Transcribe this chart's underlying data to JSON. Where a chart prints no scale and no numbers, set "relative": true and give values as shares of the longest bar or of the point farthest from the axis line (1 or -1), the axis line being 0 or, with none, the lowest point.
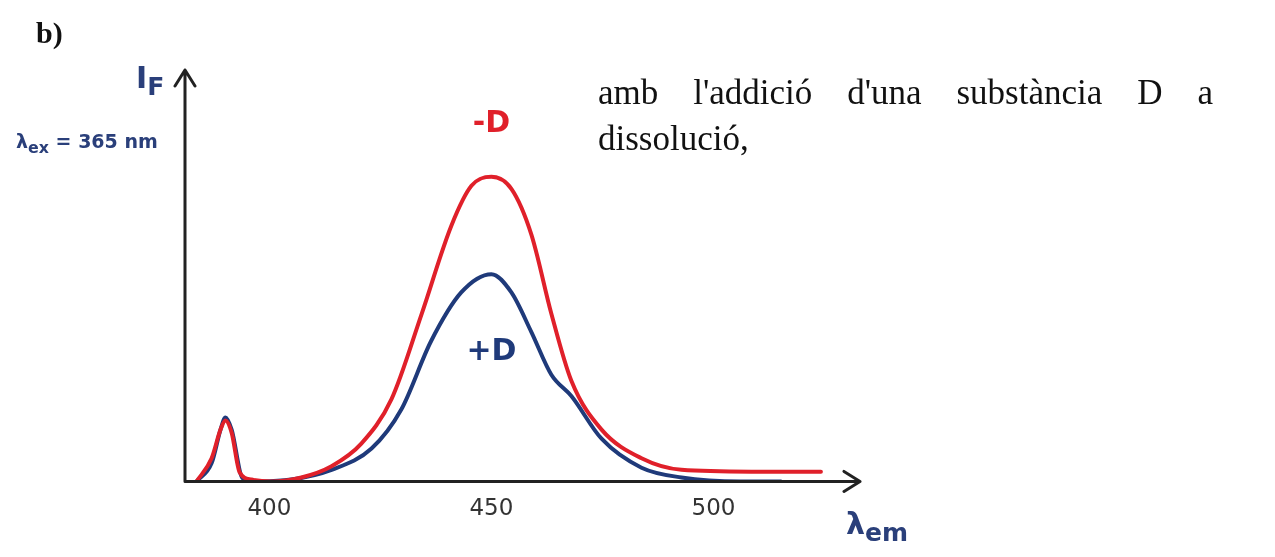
{
  "chart_data": {
    "type": "line",
    "relative": true,
    "xlabel": "λ$_{em}$",
    "ylabel": "I$_{F}$",
    "xlim": [
      381,
      533
    ],
    "xticks": [
      400,
      450,
      500
    ],
    "grid": false,
    "legend": false,
    "marker": "none",
    "line_style": "solid",
    "annotations": [
      "b)",
      "λ$_{ex}$ = 365 nm",
      "amb l'addició d'una substància D a dissolució,"
    ],
    "series": [
      {
        "name": "-D",
        "color": "#e0202a",
        "x": [
          383.6,
          387,
          389,
          390.1,
          391.5,
          393.3,
          396,
          400.4,
          407.2,
          414,
          420.7,
          427.5,
          434.3,
          441,
          445.5,
          450,
          454.5,
          459,
          463.5,
          468,
          474.8,
          483.8,
          492.8,
          508.5,
          524.2
        ],
        "values": [
          0,
          0.076,
          0.17,
          0.2,
          0.16,
          0.03,
          0.006,
          0,
          0.013,
          0.05,
          0.124,
          0.27,
          0.55,
          0.84,
          0.97,
          1,
          0.96,
          0.81,
          0.55,
          0.33,
          0.17,
          0.076,
          0.038,
          0.032,
          0.032
        ]
      },
      {
        "name": "+D",
        "color": "#1f3a7a",
        "x": [
          383.6,
          387,
          389,
          390.1,
          391.5,
          394,
          398.2,
          404.9,
          414,
          423,
          429.7,
          436.4,
          443.2,
          450,
          454.5,
          459,
          463.5,
          468,
          474.8,
          483.8,
          492.8,
          506.2,
          515.2
        ],
        "values": [
          0,
          0.06,
          0.17,
          0.21,
          0.17,
          0.01,
          0,
          0.006,
          0.038,
          0.108,
          0.236,
          0.46,
          0.62,
          0.68,
          0.62,
          0.49,
          0.35,
          0.28,
          0.14,
          0.045,
          0.013,
          0,
          0
        ]
      }
    ]
  }
}
